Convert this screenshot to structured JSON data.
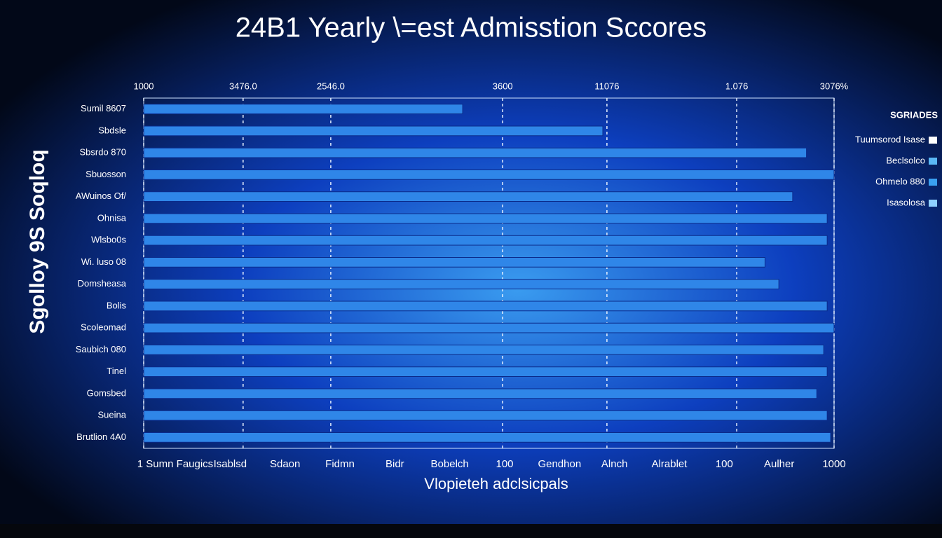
{
  "chart_data": {
    "type": "hbar",
    "title": "24B1 Yearly \\=est Admisstion Sccores",
    "x_label": "Vlopieteh adclsicpals",
    "y_label": "Sgolloy 9S Soqloq",
    "categories": [
      "Sumil 8607",
      "Sbdsle",
      "Sbsrdo 870",
      "Sbuosson",
      "AWuinos Of/",
      "Ohnisa",
      "Wlsbo0s",
      "Wi. luso 08",
      "Domsheasa",
      "Bolis",
      "Scoleomad",
      "Saubich 080",
      "Tinel",
      "Gomsbed",
      "Sueina",
      "Brutlion 4A0"
    ],
    "values": [
      462,
      665,
      960,
      1000,
      940,
      990,
      990,
      900,
      920,
      990,
      1000,
      985,
      990,
      975,
      990,
      995
    ],
    "color": "#2f86e8",
    "xlim": [
      0,
      1000
    ],
    "xticks": [
      {
        "value": 0,
        "label": "1000"
      },
      {
        "value": 144,
        "label": "3476.0"
      },
      {
        "value": 271,
        "label": "2546.0"
      },
      {
        "value": 520,
        "label": "3600"
      },
      {
        "value": 671,
        "label": "11076"
      },
      {
        "value": 859,
        "label": "1.076"
      },
      {
        "value": 1000,
        "label": "3076%"
      }
    ],
    "grid": true,
    "bottom_labels": [
      "1 Sumn Faugics",
      "Isablsd",
      "Sdaon",
      "Fidmn",
      "Bidr",
      "Bobelch",
      "100",
      "Gendhon",
      "Alnch",
      "Alrablet",
      "100",
      "Aulher",
      "1000"
    ],
    "legend": {
      "title": "SGRIADES",
      "position": "right",
      "items": [
        {
          "label": "Tuumsorod Isase",
          "color": "#ffffff"
        },
        {
          "label": "Beclsolco",
          "color": "#5ab8f5"
        },
        {
          "label": "Ohmelo 880",
          "color": "#3aa0f0"
        },
        {
          "label": "Isasolosa",
          "color": "#8fd0ff"
        }
      ]
    }
  }
}
